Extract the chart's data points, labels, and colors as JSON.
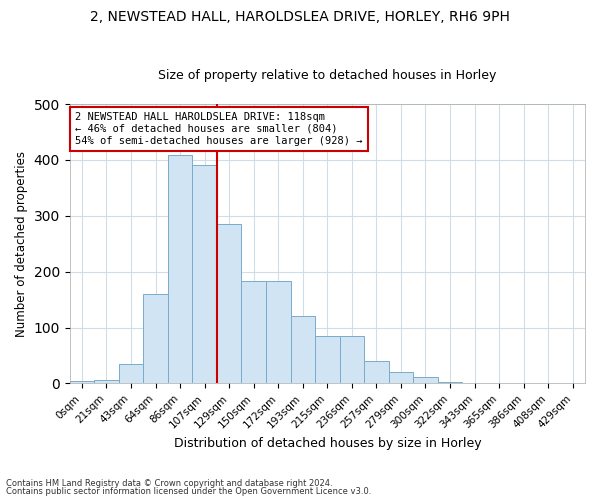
{
  "title1": "2, NEWSTEAD HALL, HAROLDSLEA DRIVE, HORLEY, RH6 9PH",
  "title2": "Size of property relative to detached houses in Horley",
  "xlabel": "Distribution of detached houses by size in Horley",
  "ylabel": "Number of detached properties",
  "bar_labels": [
    "0sqm",
    "21sqm",
    "43sqm",
    "64sqm",
    "86sqm",
    "107sqm",
    "129sqm",
    "150sqm",
    "172sqm",
    "193sqm",
    "215sqm",
    "236sqm",
    "257sqm",
    "279sqm",
    "300sqm",
    "322sqm",
    "343sqm",
    "365sqm",
    "386sqm",
    "408sqm",
    "429sqm"
  ],
  "bar_heights": [
    4,
    7,
    35,
    160,
    408,
    390,
    285,
    183,
    183,
    120,
    85,
    85,
    40,
    20,
    11,
    3,
    1,
    0,
    0,
    0,
    0
  ],
  "bar_color": "#d0e4f4",
  "bar_edge_color": "#7aabcc",
  "vline_x_index": 5.5,
  "vline_color": "#cc0000",
  "annotation_text": "2 NEWSTEAD HALL HAROLDSLEA DRIVE: 118sqm\n← 46% of detached houses are smaller (804)\n54% of semi-detached houses are larger (928) →",
  "annotation_box_edgecolor": "#cc0000",
  "annotation_bg_color": "#ffffff",
  "annotation_text_color": "#000000",
  "footnote1": "Contains HM Land Registry data © Crown copyright and database right 2024.",
  "footnote2": "Contains public sector information licensed under the Open Government Licence v3.0.",
  "ylim": [
    0,
    500
  ],
  "bg_color": "#ffffff",
  "grid_color": "#d0dce8",
  "title1_fontsize": 10,
  "title2_fontsize": 9
}
